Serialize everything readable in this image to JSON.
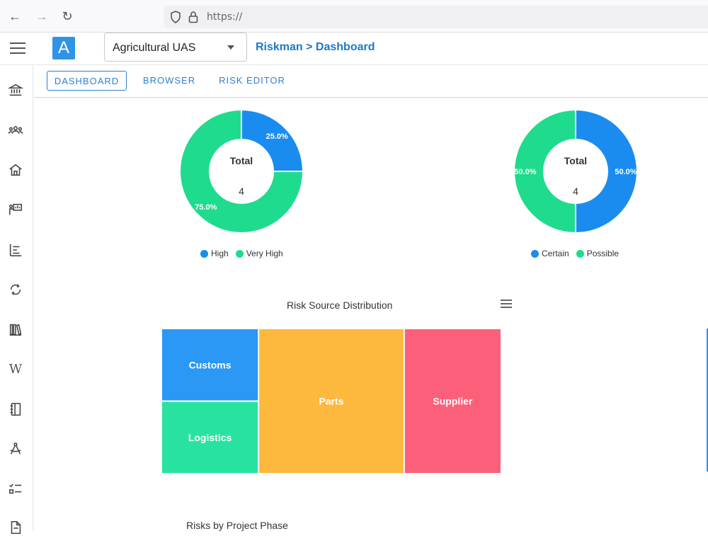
{
  "browser": {
    "url": "https://"
  },
  "header": {
    "logo_letter": "A",
    "project": "Agricultural UAS",
    "breadcrumb": "Riskman > Dashboard"
  },
  "sidebar": {
    "icons": [
      "bank-icon",
      "group-icon",
      "home-icon",
      "presentation-icon",
      "chart-bars-icon",
      "refresh-icon",
      "library-icon",
      "wikipedia-icon",
      "notebook-icon",
      "compass-icon",
      "checklist-icon",
      "document-icon"
    ]
  },
  "tabs": [
    {
      "label": "DASHBOARD",
      "active": true
    },
    {
      "label": "BROWSER",
      "active": false
    },
    {
      "label": "RISK EDITOR",
      "active": false
    }
  ],
  "colors": {
    "blue": "#1a8cf0",
    "green": "#1fdb8d",
    "orange": "#fdb83e",
    "red": "#fc5f79",
    "cyan_blue": "#2f93e8",
    "teal": "#28e3a0",
    "accent": "#1e78c8"
  },
  "chart_data": [
    {
      "type": "pie",
      "donut": true,
      "center_label": "Total",
      "center_value": "4",
      "slices": [
        {
          "name": "High",
          "value": 25.0,
          "label": "25.0%",
          "color": "#1a8cf0"
        },
        {
          "name": "Very High",
          "value": 75.0,
          "label": "75.0%",
          "color": "#1fdb8d"
        }
      ],
      "legend": [
        "High",
        "Very High"
      ]
    },
    {
      "type": "pie",
      "donut": true,
      "center_label": "Total",
      "center_value": "4",
      "slices": [
        {
          "name": "Certain",
          "value": 50.0,
          "label": "50.0%",
          "color": "#1a8cf0"
        },
        {
          "name": "Possible",
          "value": 50.0,
          "label": "50.0%",
          "color": "#1fdb8d"
        }
      ],
      "legend": [
        "Certain",
        "Possible"
      ]
    },
    {
      "type": "treemap",
      "title": "Risk Source Distribution",
      "items": [
        {
          "name": "Customs",
          "value": 1,
          "color": "#2a98f4"
        },
        {
          "name": "Logistics",
          "value": 1,
          "color": "#28e3a0"
        },
        {
          "name": "Parts",
          "value": 3,
          "color": "#fdb83e"
        },
        {
          "name": "Supplier",
          "value": 2,
          "color": "#fc5f79"
        }
      ]
    }
  ],
  "next_chart_title": "Risks by Project Phase"
}
